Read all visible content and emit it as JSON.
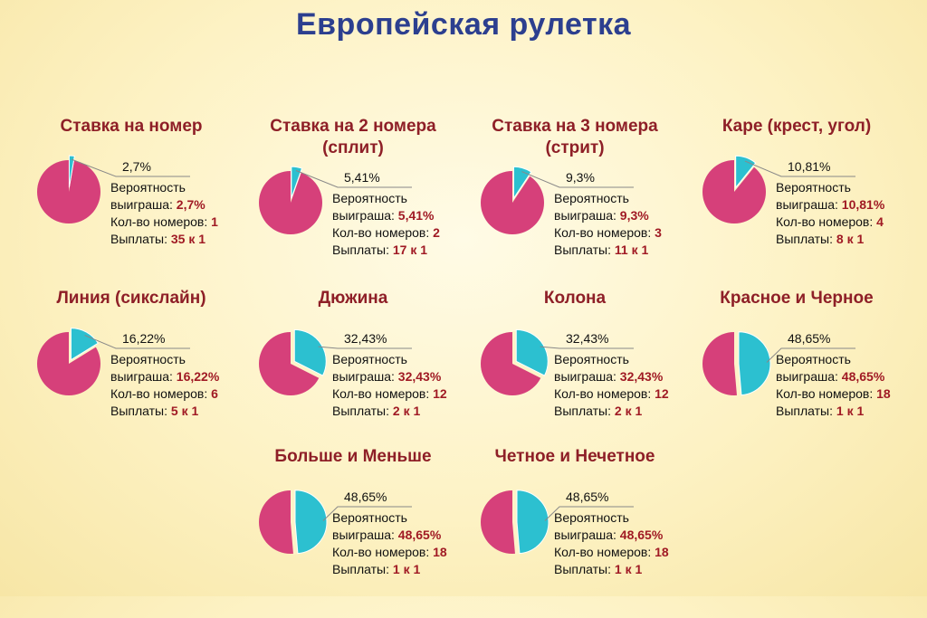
{
  "page": {
    "title": "Европейская рулетка"
  },
  "labels": {
    "prob_line1": "Вероятность",
    "prob_line2": "выиграша: ",
    "count": "Кол-во номеров: ",
    "payout": "Выплаты: "
  },
  "colors": {
    "main": "#d6407a",
    "slice": "#2cc0d0",
    "title": "#2c3f8f",
    "card_title": "#8e1f27",
    "value": "#a01a24"
  },
  "chart_data": [
    {
      "type": "pie",
      "title": "Ставка на номер",
      "pct_label": "2,7%",
      "value": 2.7,
      "numbers": "1",
      "payout": "35 к 1"
    },
    {
      "type": "pie",
      "title": "Ставка на 2 номера (сплит)",
      "pct_label": "5,41%",
      "value": 5.41,
      "numbers": "2",
      "payout": "17 к 1"
    },
    {
      "type": "pie",
      "title": "Ставка на 3 номера (стрит)",
      "pct_label": "9,3%",
      "value": 9.3,
      "numbers": "3",
      "payout": "11 к 1"
    },
    {
      "type": "pie",
      "title": "Каре (крест, угол)",
      "pct_label": "10,81%",
      "value": 10.81,
      "numbers": "4",
      "payout": "8 к 1"
    },
    {
      "type": "pie",
      "title": "Линия (сикслайн)",
      "pct_label": "16,22%",
      "value": 16.22,
      "numbers": "6",
      "payout": "5 к 1"
    },
    {
      "type": "pie",
      "title": "Дюжина",
      "pct_label": "32,43%",
      "value": 32.43,
      "numbers": "12",
      "payout": "2 к 1"
    },
    {
      "type": "pie",
      "title": "Колона",
      "pct_label": "32,43%",
      "value": 32.43,
      "numbers": "12",
      "payout": "2 к 1"
    },
    {
      "type": "pie",
      "title": "Красное и Черное",
      "pct_label": "48,65%",
      "value": 48.65,
      "numbers": "18",
      "payout": "1 к 1"
    },
    {
      "type": "pie",
      "title": "Больше и Меньше",
      "pct_label": "48,65%",
      "value": 48.65,
      "numbers": "18",
      "payout": "1 к 1"
    },
    {
      "type": "pie",
      "title": "Четное и Нечетное",
      "pct_label": "48,65%",
      "value": 48.65,
      "numbers": "18",
      "payout": "1 к 1"
    }
  ]
}
